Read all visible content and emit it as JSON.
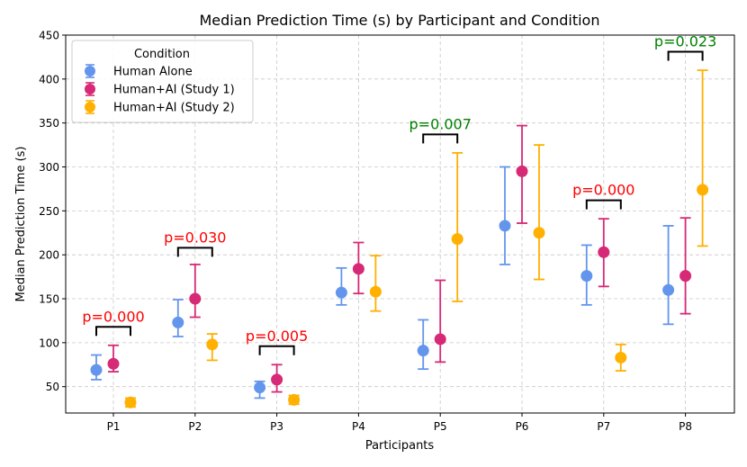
{
  "chart_data": {
    "type": "scatter",
    "title": "Median Prediction Time (s) by Participant and Condition",
    "xlabel": "Participants",
    "ylabel": "Median Prediction Time (s)",
    "categories": [
      "P1",
      "P2",
      "P3",
      "P4",
      "P5",
      "P6",
      "P7",
      "P8"
    ],
    "ylim": [
      20,
      450
    ],
    "yticks": [
      50,
      100,
      150,
      200,
      250,
      300,
      350,
      400,
      450
    ],
    "grid": true,
    "legend": {
      "title": "Condition",
      "position": "top-left"
    },
    "series": [
      {
        "name": "Human Alone",
        "color": "#6495ED",
        "values": [
          69,
          123,
          49,
          157,
          91,
          233,
          176,
          160
        ],
        "err_low": [
          58,
          107,
          37,
          143,
          70,
          189,
          143,
          121
        ],
        "err_high": [
          86,
          149,
          56,
          185,
          126,
          300,
          211,
          233
        ]
      },
      {
        "name": "Human+AI (Study 1)",
        "color": "#D62976",
        "values": [
          76,
          150,
          58,
          184,
          104,
          295,
          203,
          176
        ],
        "err_low": [
          67,
          129,
          44,
          156,
          78,
          236,
          164,
          133
        ],
        "err_high": [
          97,
          189,
          75,
          214,
          171,
          347,
          241,
          242
        ]
      },
      {
        "name": "Human+AI (Study 2)",
        "color": "#FFB000",
        "values": [
          32,
          98,
          35,
          158,
          218,
          225,
          83,
          274
        ],
        "err_low": [
          27,
          80,
          30,
          136,
          147,
          172,
          68,
          210
        ],
        "err_high": [
          37,
          110,
          40,
          199,
          316,
          325,
          98,
          410
        ]
      }
    ],
    "annotations": [
      {
        "category": "P1",
        "text": "p=0.000",
        "y": 118,
        "color": "#ff0000"
      },
      {
        "category": "P2",
        "text": "p=0.030",
        "y": 208,
        "color": "#ff0000"
      },
      {
        "category": "P3",
        "text": "p=0.005",
        "y": 96,
        "color": "#ff0000"
      },
      {
        "category": "P5",
        "text": "p=0.007",
        "y": 337,
        "color": "#008000"
      },
      {
        "category": "P7",
        "text": "p=0.000",
        "y": 262,
        "color": "#ff0000"
      },
      {
        "category": "P8",
        "text": "p=0.023",
        "y": 431,
        "color": "#008000"
      }
    ]
  }
}
